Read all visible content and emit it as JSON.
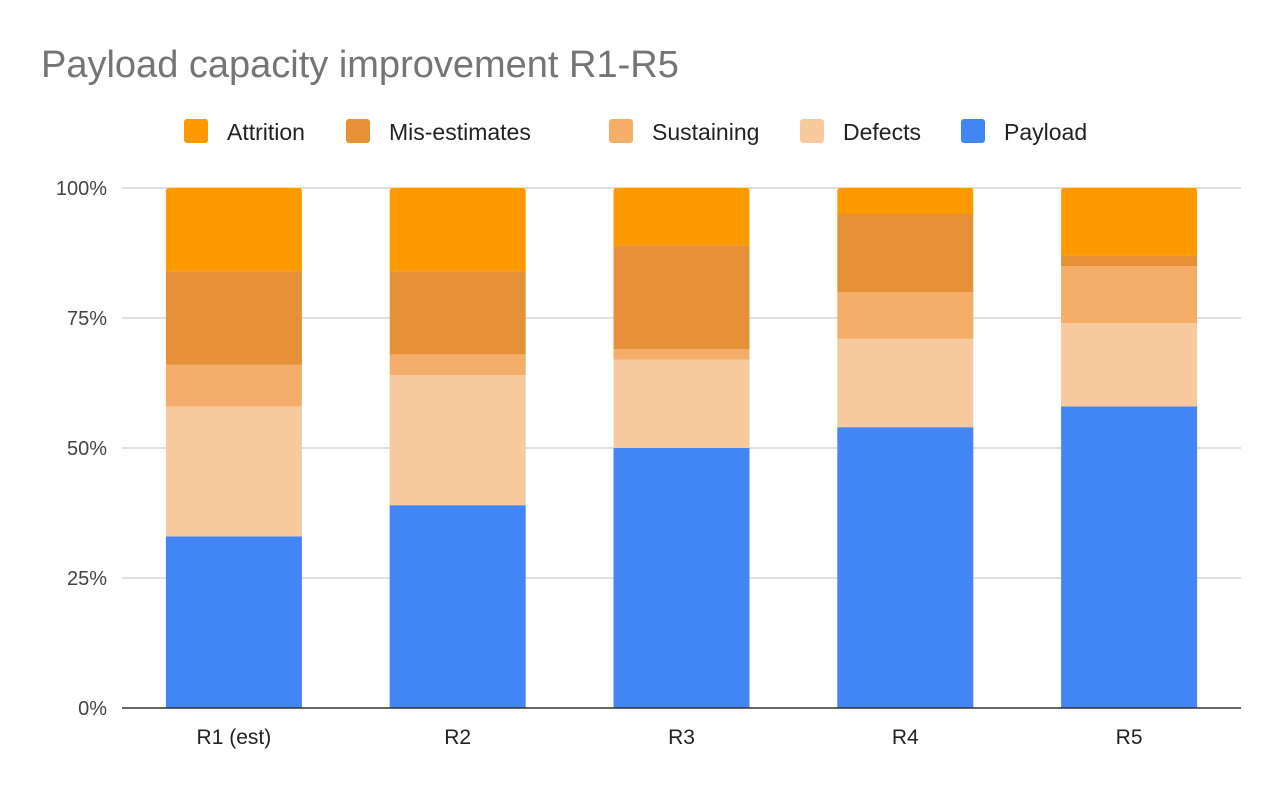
{
  "chart_data": {
    "type": "bar",
    "stacked": "percent",
    "title": "Payload capacity improvement R1-R5",
    "xlabel": "",
    "ylabel": "",
    "categories": [
      "R1 (est)",
      "R2",
      "R3",
      "R4",
      "R5"
    ],
    "ylim": [
      0,
      100
    ],
    "yticks": [
      0,
      25,
      50,
      75,
      100
    ],
    "ytick_labels": [
      "0%",
      "25%",
      "50%",
      "75%",
      "100%"
    ],
    "grid": true,
    "legend_position": "top",
    "legend_order": [
      "Attrition",
      "Mis-estimates",
      "Sustaining",
      "Defects",
      "Payload"
    ],
    "series": [
      {
        "name": "Payload",
        "color": "#4285f4",
        "values": [
          33,
          39,
          50,
          54,
          58
        ]
      },
      {
        "name": "Defects",
        "color": "#f8c99c",
        "values": [
          25,
          25,
          17,
          17,
          16
        ]
      },
      {
        "name": "Sustaining",
        "color": "#f5ae69",
        "values": [
          8,
          4,
          2,
          9,
          11
        ]
      },
      {
        "name": "Mis-estimates",
        "color": "#e69138",
        "values": [
          18,
          16,
          20,
          15,
          2
        ]
      },
      {
        "name": "Attrition",
        "color": "#ff9900",
        "values": [
          16,
          16,
          11,
          5,
          13
        ]
      }
    ]
  }
}
